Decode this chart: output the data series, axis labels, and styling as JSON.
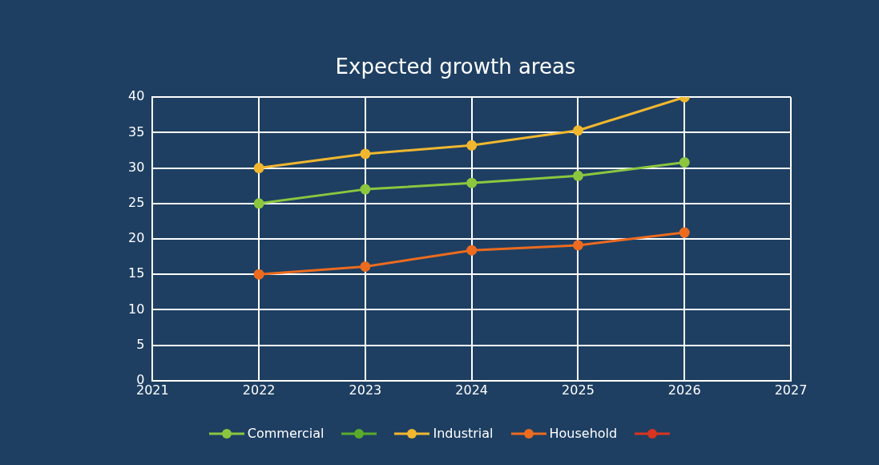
{
  "chart_data": {
    "type": "line",
    "title": "Expected growth areas",
    "x": [
      2022,
      2023,
      2024,
      2025,
      2026
    ],
    "series": [
      {
        "name": "Commercial",
        "color": "#8cc63f",
        "values": [
          25,
          27,
          27.9,
          28.9,
          30.8
        ]
      },
      {
        "color": "#5aab2a",
        "values": [
          null,
          null,
          null,
          null,
          null
        ]
      },
      {
        "name": "Industrial",
        "color": "#f0b72f",
        "values": [
          30,
          32,
          33.2,
          35.3,
          40
        ]
      },
      {
        "name": "Household",
        "color": "#ec6b1f",
        "values": [
          15,
          16.1,
          18.4,
          19.1,
          20.9
        ]
      },
      {
        "color": "#d8341f",
        "values": [
          null,
          null,
          null,
          null,
          null
        ]
      }
    ],
    "xlim": [
      2021,
      2027
    ],
    "xticks": [
      2021,
      2022,
      2023,
      2024,
      2025,
      2026,
      2027
    ],
    "ylim": [
      0,
      40
    ],
    "yticks": [
      0,
      5,
      10,
      15,
      20,
      25,
      30,
      35,
      40
    ],
    "grid": true,
    "legend": "bottom",
    "marker": "circle",
    "line_style": "solid"
  }
}
